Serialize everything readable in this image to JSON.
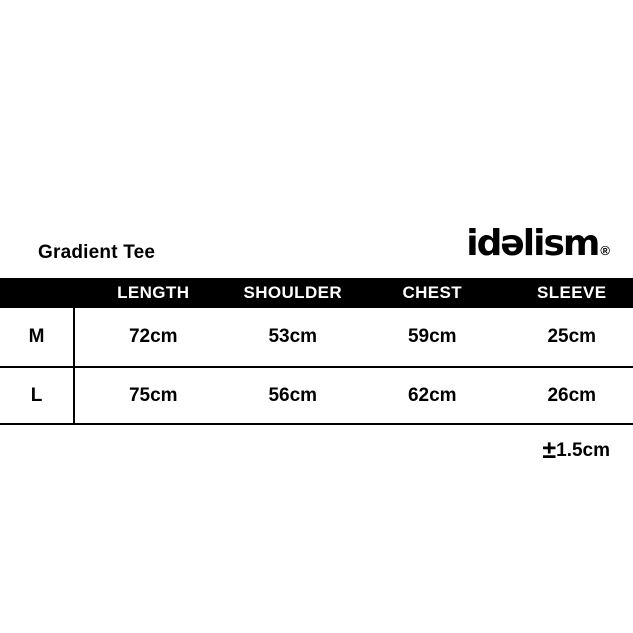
{
  "colors": {
    "background": "#ffffff",
    "text": "#000000",
    "header_bar_bg": "#000000",
    "header_bar_text": "#ffffff"
  },
  "header": {
    "title": "Gradient Tee",
    "brand": "idəlism",
    "brand_mark": "®"
  },
  "table": {
    "columns": [
      "LENGTH",
      "SHOULDER",
      "CHEST",
      "SLEEVE"
    ],
    "rows": [
      {
        "size": "M",
        "values": [
          "72cm",
          "53cm",
          "59cm",
          "25cm"
        ]
      },
      {
        "size": "L",
        "values": [
          "75cm",
          "56cm",
          "62cm",
          "26cm"
        ]
      }
    ],
    "tolerance": {
      "symbol": "±",
      "value": "1.5cm"
    }
  }
}
